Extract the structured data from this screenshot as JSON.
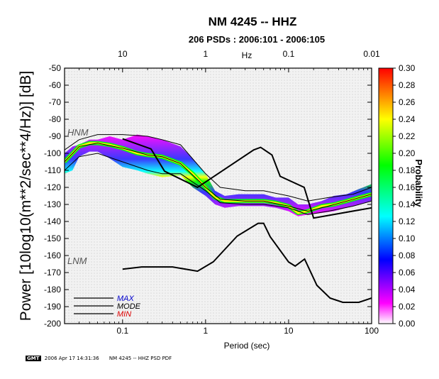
{
  "chart_data": {
    "type": "heatmap",
    "title": "NM 4245 -- HHZ",
    "subtitle": "206 PSDs : 2006:101 - 2006:105",
    "xlabel": "Period (sec)",
    "top_xlabel": "Hz",
    "ylabel": "Power [10log10(m**2/sec**4/Hz)] [dB]",
    "colorbar_label": "Probability",
    "xscale": "log",
    "xlim": [
      0.02,
      100
    ],
    "ylim": [
      -200,
      -50
    ],
    "x_ticks": [
      0.1,
      1,
      10,
      100
    ],
    "x_tick_labels": [
      "0.1",
      "1",
      "10",
      "100"
    ],
    "top_ticks": [
      0.1,
      1,
      10,
      100
    ],
    "top_tick_labels": [
      "10",
      "1",
      "0.1",
      "0.01"
    ],
    "y_ticks": [
      -50,
      -60,
      -70,
      -80,
      -90,
      -100,
      -110,
      -120,
      -130,
      -140,
      -150,
      -160,
      -170,
      -180,
      -190,
      -200
    ],
    "y_tick_labels": [
      "-50",
      "-60",
      "-70",
      "-80",
      "-90",
      "-100",
      "-110",
      "-120",
      "-130",
      "-140",
      "-150",
      "-160",
      "-170",
      "-180",
      "-190",
      "-200"
    ],
    "colorbar_range": [
      0,
      0.3
    ],
    "colorbar_ticks": [
      "0.00",
      "0.02",
      "0.04",
      "0.06",
      "0.08",
      "0.10",
      "0.12",
      "0.14",
      "0.16",
      "0.18",
      "0.20",
      "0.22",
      "0.24",
      "0.26",
      "0.28",
      "0.30"
    ],
    "colorscale": [
      "#ffffff",
      "#ff00ff",
      "#0000ff",
      "#00ffff",
      "#00ff00",
      "#ffff00",
      "#ff0000"
    ],
    "density_period": [
      0.02,
      0.025,
      0.03,
      0.04,
      0.05,
      0.07,
      0.1,
      0.15,
      0.2,
      0.3,
      0.5,
      0.7,
      1,
      1.3,
      1.7,
      2.5,
      3.5,
      5,
      7,
      10,
      13,
      17,
      25,
      35,
      50,
      70,
      100
    ],
    "density_mode": [
      -105,
      -100,
      -96,
      -94,
      -94,
      -95,
      -97,
      -100,
      -101,
      -102,
      -106,
      -112,
      -120,
      -126,
      -128,
      -128,
      -128,
      -128,
      -129,
      -131,
      -135,
      -134,
      -131,
      -130,
      -128,
      -126,
      -124
    ],
    "density_upper": [
      -100,
      -96,
      -95,
      -92,
      -92,
      -90,
      -92,
      -89,
      -90,
      -92,
      -96,
      -103,
      -112,
      -122,
      -125,
      -124,
      -124,
      -124,
      -126,
      -126,
      -130,
      -130,
      -128,
      -125,
      -124,
      -121,
      -118
    ],
    "density_lower": [
      -112,
      -110,
      -102,
      -99,
      -99,
      -103,
      -108,
      -110,
      -112,
      -114,
      -113,
      -120,
      -125,
      -130,
      -132,
      -131,
      -131,
      -131,
      -132,
      -134,
      -137,
      -136,
      -135,
      -134,
      -132,
      -130,
      -128
    ],
    "hnm_label": "HNM",
    "lnm_label": "LNM",
    "hnm": {
      "x": [
        0.1,
        0.22,
        0.32,
        0.8,
        3.8,
        4.6,
        6.3,
        7.9,
        15.4,
        20,
        100
      ],
      "y": [
        -91.5,
        -97.4,
        -110.5,
        -120,
        -98,
        -96.5,
        -101,
        -113.5,
        -120,
        -138,
        -132
      ]
    },
    "lnm": {
      "x": [
        0.1,
        0.17,
        0.4,
        0.8,
        1.24,
        2.4,
        4.3,
        5,
        6,
        10,
        12,
        15.6,
        21.9,
        31.6,
        45,
        70,
        100
      ],
      "y": [
        -168,
        -166.7,
        -166.7,
        -169.2,
        -163.7,
        -148.6,
        -141.1,
        -141.1,
        -149,
        -163.8,
        -166.2,
        -162.1,
        -177.5,
        -185,
        -187.5,
        -187.5,
        -185
      ]
    },
    "series": [
      {
        "name": "MAX",
        "color": "#0000cc",
        "x": [
          0.02,
          0.03,
          0.05,
          0.1,
          0.2,
          0.3,
          0.5,
          1,
          1.5,
          3,
          5,
          10,
          17,
          30,
          60,
          100
        ],
        "y": [
          -98,
          -92,
          -89,
          -89,
          -90,
          -92,
          -95,
          -112,
          -120,
          -122,
          -122,
          -125,
          -128,
          -126,
          -124,
          -120
        ]
      },
      {
        "name": "MODE",
        "color": "#000000",
        "x": [
          0.02,
          0.03,
          0.05,
          0.1,
          0.2,
          0.3,
          0.5,
          1,
          1.5,
          3,
          5,
          10,
          17,
          30,
          60,
          100
        ],
        "y": [
          -105,
          -96,
          -94,
          -97,
          -101,
          -102,
          -106,
          -120,
          -127,
          -128,
          -128,
          -131,
          -134,
          -131,
          -127,
          -124
        ]
      },
      {
        "name": "MIN",
        "color": "#dd0000",
        "x": [
          0.02,
          0.03,
          0.05,
          0.1,
          0.2,
          0.3,
          0.5,
          1,
          1.5,
          3,
          5,
          10,
          17,
          30,
          60,
          100
        ],
        "y": [
          -110,
          -102,
          -100,
          -105,
          -110,
          -112,
          -112,
          -122,
          -129,
          -130,
          -130,
          -132,
          -136,
          -134,
          -131,
          -128
        ]
      }
    ]
  },
  "footer": {
    "logo": "GMT",
    "timestamp": "2006 Apr 17 14:31:36",
    "caption": "NM 4245 -- HHZ PSD PDF"
  }
}
